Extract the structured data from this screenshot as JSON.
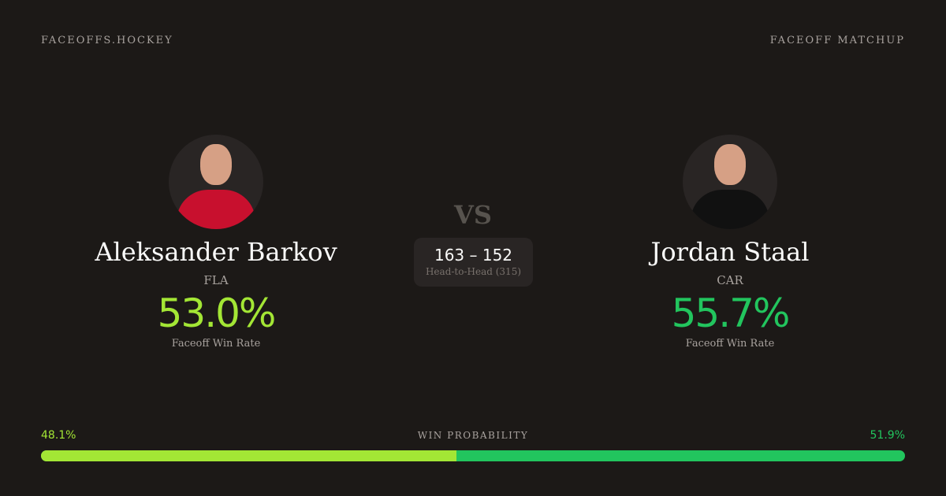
{
  "header": {
    "brand": "FACEOFFS.HOCKEY",
    "page_type": "FACEOFF MATCHUP"
  },
  "players": [
    {
      "name": "Aleksander Barkov",
      "team": "FLA",
      "win_rate": "53.0%",
      "win_rate_label": "Faceoff Win Rate",
      "color": "#a3e635",
      "jersey": "#c8102e"
    },
    {
      "name": "Jordan Staal",
      "team": "CAR",
      "win_rate": "55.7%",
      "win_rate_label": "Faceoff Win Rate",
      "color": "#22c55e",
      "jersey": "#111111"
    }
  ],
  "vs": "VS",
  "head_to_head": {
    "score": "163 – 152",
    "label": "Head-to-Head (315)"
  },
  "probability": {
    "label": "WIN PROBABILITY",
    "left": "48.1%",
    "right": "51.9%",
    "left_value": 48.1,
    "right_value": 51.9
  }
}
